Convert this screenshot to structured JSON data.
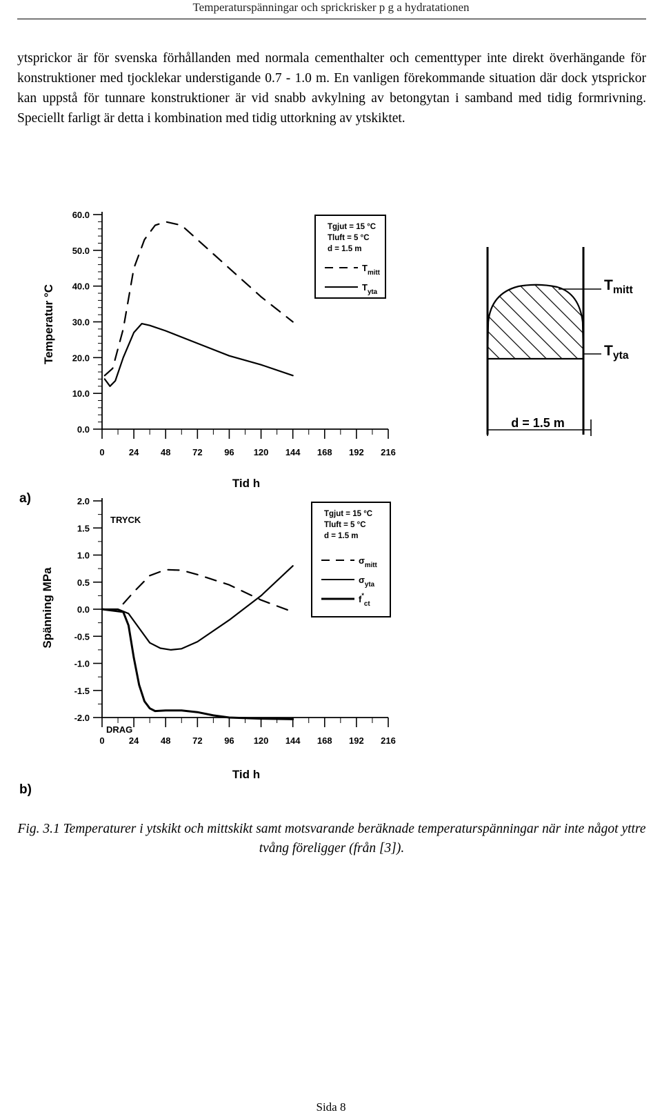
{
  "header": {
    "running_title": "Temperaturspänningar och sprickrisker p g a hydratationen"
  },
  "body": {
    "paragraph": "ytsprickor är för svenska förhållanden med normala cementhalter och cementtyper inte direkt överhängande för konstruktioner med tjocklekar understigande 0.7 - 1.0 m. En vanligen förekommande situation där dock ytsprickor kan uppstå för tunnare konstruktioner är vid snabb avkylning av betongytan i samband med tidig formrivning. Speciellt farligt är detta i kombination med tidig uttorkning av ytskiktet."
  },
  "chart_data": [
    {
      "type": "line",
      "panel_label": "a)",
      "xlabel": "Tid h",
      "ylabel": "Temperatur °C",
      "xlim": [
        0,
        216
      ],
      "ylim": [
        0,
        60
      ],
      "x_ticks": [
        "0",
        "24",
        "48",
        "72",
        "96",
        "120",
        "144",
        "168",
        "192",
        "216"
      ],
      "y_ticks": [
        "60.0",
        "50.0",
        "40.0",
        "30.0",
        "20.0",
        "10.0",
        "0.0"
      ],
      "legend": {
        "params": [
          "Tgjut = 15 °C",
          "Tluft = 5 °C",
          "d = 1.5 m"
        ],
        "entries": [
          "Tmitt",
          "Tyta"
        ]
      },
      "series": [
        {
          "name": "Tmitt",
          "style": "dashed",
          "x": [
            2,
            8,
            16,
            24,
            32,
            40,
            48,
            60,
            72,
            96,
            120,
            144
          ],
          "y": [
            15,
            17,
            28,
            45,
            53,
            57,
            58,
            57,
            53,
            45,
            37,
            30
          ]
        },
        {
          "name": "Tyta",
          "style": "solid",
          "x": [
            2,
            6,
            10,
            16,
            24,
            30,
            36,
            48,
            72,
            96,
            120,
            144
          ],
          "y": [
            14,
            12,
            13.5,
            20,
            27,
            29.5,
            29,
            27.5,
            24,
            20.5,
            18,
            15
          ]
        }
      ]
    },
    {
      "type": "line",
      "panel_label": "b)",
      "xlabel": "Tid h",
      "ylabel": "Spänning MPa",
      "xlim": [
        0,
        216
      ],
      "ylim": [
        -2.0,
        2.0
      ],
      "x_ticks": [
        "0",
        "24",
        "48",
        "72",
        "96",
        "120",
        "144",
        "168",
        "192",
        "216"
      ],
      "y_ticks": [
        "2.0",
        "1.5",
        "1.0",
        "0.5",
        "0.0",
        "-0.5",
        "-1.0",
        "-1.5",
        "-2.0"
      ],
      "annotations": {
        "top": "TRYCK",
        "bottom": "DRAG"
      },
      "legend": {
        "params": [
          "Tgjut = 15 °C",
          "Tluft = 5 °C",
          "d = 1.5 m"
        ],
        "entries": [
          "σmitt",
          "σyta",
          "f*ct"
        ]
      },
      "series": [
        {
          "name": "σmitt",
          "style": "dashed",
          "x": [
            16,
            24,
            36,
            48,
            60,
            72,
            96,
            120,
            144
          ],
          "y": [
            0.1,
            0.32,
            0.62,
            0.73,
            0.72,
            0.64,
            0.45,
            0.17,
            -0.05
          ]
        },
        {
          "name": "σyta",
          "style": "solid",
          "x": [
            0,
            12,
            20,
            28,
            36,
            44,
            52,
            60,
            72,
            96,
            120,
            144
          ],
          "y": [
            0,
            0,
            -0.08,
            -0.35,
            -0.62,
            -0.72,
            -0.75,
            -0.73,
            -0.6,
            -0.2,
            0.25,
            0.8
          ]
        },
        {
          "name": "f*ct",
          "style": "bold",
          "x": [
            0,
            16,
            20,
            24,
            28,
            32,
            36,
            40,
            48,
            60,
            72,
            84,
            96,
            120,
            144
          ],
          "y": [
            0,
            -0.05,
            -0.3,
            -0.9,
            -1.4,
            -1.7,
            -1.83,
            -1.88,
            -1.87,
            -1.87,
            -1.9,
            -1.96,
            -2.0,
            -2.02,
            -2.03
          ]
        }
      ]
    }
  ],
  "cross_section": {
    "top_label": "Tmitt",
    "side_label": "Tyta",
    "dimension_label": "d = 1.5 m"
  },
  "caption": {
    "text": "Fig. 3.1 Temperaturer i ytskikt och mittskikt samt motsvarande beräknade temperaturspänningar när inte något yttre tvång föreligger (från [3])."
  },
  "footer": {
    "page_number": "Sida 8"
  }
}
